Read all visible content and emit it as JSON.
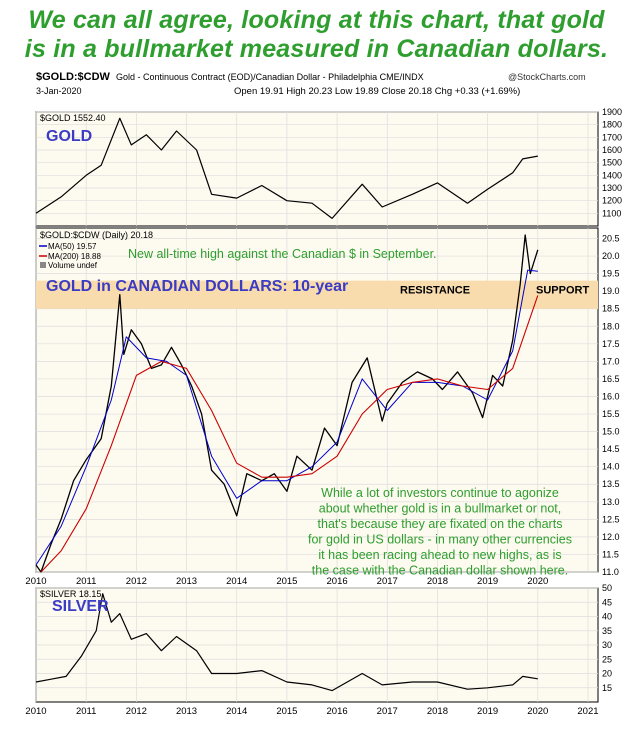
{
  "headline": {
    "line1": "We can all agree, looking at this chart, that gold",
    "line2": "is in a bullmarket measured in Canadian dollars."
  },
  "header": {
    "symbol": "$GOLD:$CDW",
    "description": "Gold - Continuous Contract (EOD)/Canadian Dollar - Philadelphia  CME/INDX",
    "brand": "@StockCharts.com",
    "date": "3-Jan-2020",
    "ohlc": "Open 19.91  High 20.23  Low 19.89  Close 20.18  Chg +0.33 (+1.69%)"
  },
  "colors": {
    "accent": "#2e9e2e",
    "title_blue": "#3b3bc4",
    "band": "#f8dcae",
    "ma50": "#0000cc",
    "ma200": "#cc0000",
    "panel_bg": "#fdfaf0"
  },
  "chart_data": [
    {
      "type": "line",
      "legend": "$GOLD 1552.40",
      "label": "GOLD",
      "x": [
        2010.0,
        2010.5,
        2011.0,
        2011.3,
        2011.67,
        2011.9,
        2012.2,
        2012.5,
        2012.8,
        2013.2,
        2013.5,
        2014.0,
        2014.5,
        2015.0,
        2015.5,
        2015.9,
        2016.5,
        2016.9,
        2017.5,
        2018.0,
        2018.6,
        2019.0,
        2019.5,
        2019.7,
        2020.0
      ],
      "y": [
        1100,
        1230,
        1400,
        1480,
        1850,
        1640,
        1720,
        1600,
        1750,
        1600,
        1250,
        1220,
        1320,
        1200,
        1180,
        1060,
        1330,
        1150,
        1250,
        1340,
        1180,
        1290,
        1420,
        1530,
        1552
      ],
      "ylim": [
        1000,
        1900
      ],
      "yticks": [
        1100,
        1200,
        1300,
        1400,
        1500,
        1600,
        1700,
        1800,
        1900
      ]
    },
    {
      "type": "line",
      "legend": [
        "$GOLD:$CDW (Daily) 20.18",
        "MA(50) 19.57",
        "MA(200) 18.88",
        "Volume undef"
      ],
      "title": "GOLD in CANADIAN DOLLARS: 10-year",
      "series": [
        {
          "name": "$GOLD:$CDW",
          "x": [
            2010.0,
            2010.1,
            2010.3,
            2010.5,
            2010.75,
            2011.0,
            2011.3,
            2011.5,
            2011.67,
            2011.75,
            2011.9,
            2012.1,
            2012.3,
            2012.5,
            2012.7,
            2012.9,
            2013.1,
            2013.3,
            2013.5,
            2013.75,
            2014.0,
            2014.2,
            2014.5,
            2014.75,
            2015.0,
            2015.2,
            2015.5,
            2015.75,
            2016.0,
            2016.3,
            2016.6,
            2016.9,
            2017.0,
            2017.3,
            2017.6,
            2017.9,
            2018.1,
            2018.4,
            2018.7,
            2018.9,
            2019.1,
            2019.3,
            2019.5,
            2019.65,
            2019.75,
            2019.85,
            2020.0
          ],
          "values": [
            11.2,
            11.0,
            11.8,
            12.5,
            13.6,
            14.2,
            14.8,
            16.3,
            18.9,
            17.2,
            17.9,
            17.5,
            16.8,
            16.9,
            17.4,
            16.9,
            16.3,
            15.5,
            13.9,
            13.5,
            12.6,
            13.8,
            13.6,
            13.8,
            13.3,
            14.3,
            13.9,
            15.1,
            14.6,
            16.4,
            17.1,
            15.3,
            15.8,
            16.4,
            16.7,
            16.5,
            16.2,
            16.7,
            16.1,
            15.4,
            16.6,
            16.3,
            17.6,
            19.2,
            20.6,
            19.5,
            20.18
          ]
        },
        {
          "name": "MA(50)",
          "x": [
            2010.0,
            2010.5,
            2011.0,
            2011.5,
            2011.8,
            2012.2,
            2012.6,
            2013.0,
            2013.5,
            2014.0,
            2014.5,
            2015.0,
            2015.5,
            2016.0,
            2016.5,
            2017.0,
            2017.5,
            2018.0,
            2018.5,
            2019.0,
            2019.5,
            2019.8,
            2020.0
          ],
          "values": [
            11.2,
            12.3,
            14.0,
            15.9,
            17.7,
            17.1,
            17.0,
            16.6,
            14.3,
            13.1,
            13.6,
            13.6,
            14.0,
            14.7,
            16.5,
            15.6,
            16.4,
            16.4,
            16.3,
            15.9,
            17.3,
            19.6,
            19.57
          ]
        },
        {
          "name": "MA(200)",
          "x": [
            2010.1,
            2010.5,
            2011.0,
            2011.5,
            2012.0,
            2012.5,
            2013.0,
            2013.5,
            2014.0,
            2014.5,
            2015.0,
            2015.5,
            2016.0,
            2016.5,
            2017.0,
            2017.5,
            2018.0,
            2018.5,
            2019.0,
            2019.5,
            2020.0
          ],
          "values": [
            11.0,
            11.6,
            12.8,
            14.6,
            16.6,
            17.0,
            16.8,
            15.6,
            14.1,
            13.7,
            13.7,
            13.8,
            14.3,
            15.5,
            16.2,
            16.4,
            16.5,
            16.3,
            16.2,
            16.8,
            18.88
          ]
        }
      ],
      "ylim": [
        11.0,
        20.8
      ],
      "yticks": [
        11.0,
        11.5,
        12.0,
        12.5,
        13.0,
        13.5,
        14.0,
        14.5,
        15.0,
        15.5,
        16.0,
        16.5,
        17.0,
        17.5,
        18.0,
        18.5,
        19.0,
        19.5,
        20.0,
        20.5
      ],
      "band": [
        18.5,
        19.3
      ],
      "annotations": {
        "new_high": "New all-time high against the Canadian $ in September.",
        "resistance": "RESISTANCE",
        "support": "SUPPORT",
        "comment": [
          "While a lot of investors continue to agonize",
          "about whether gold is in a bullmarket or not,",
          "that's because they are fixated on the charts",
          "for gold in US dollars - in many other currencies",
          "it has been racing ahead to new highs, as is",
          "the case with the Canadian dollar shown here."
        ]
      },
      "xticks": [
        "2010",
        "2011",
        "2012",
        "2013",
        "2014",
        "2015",
        "2016",
        "2017",
        "2018",
        "2019",
        "2020"
      ]
    },
    {
      "type": "line",
      "legend": "$SILVER 18.15",
      "label": "SILVER",
      "x": [
        2010.0,
        2010.3,
        2010.6,
        2010.9,
        2011.2,
        2011.33,
        2011.5,
        2011.67,
        2011.9,
        2012.2,
        2012.5,
        2012.8,
        2013.2,
        2013.5,
        2014.0,
        2014.5,
        2015.0,
        2015.5,
        2015.9,
        2016.5,
        2016.9,
        2017.5,
        2018.0,
        2018.6,
        2019.0,
        2019.5,
        2019.7,
        2020.0
      ],
      "y": [
        17,
        18,
        19,
        26,
        35,
        48,
        38,
        41,
        32,
        34,
        28,
        33,
        28,
        20,
        20,
        21,
        17,
        16,
        14,
        20,
        16,
        17,
        17,
        14.5,
        15,
        16,
        19,
        18.15
      ],
      "ylim": [
        10,
        50
      ],
      "yticks": [
        15,
        20,
        25,
        30,
        35,
        40,
        45,
        50
      ],
      "xticks": [
        "2010",
        "2011",
        "2012",
        "2013",
        "2014",
        "2015",
        "2016",
        "2017",
        "2018",
        "2019",
        "2020",
        "2021"
      ]
    }
  ]
}
